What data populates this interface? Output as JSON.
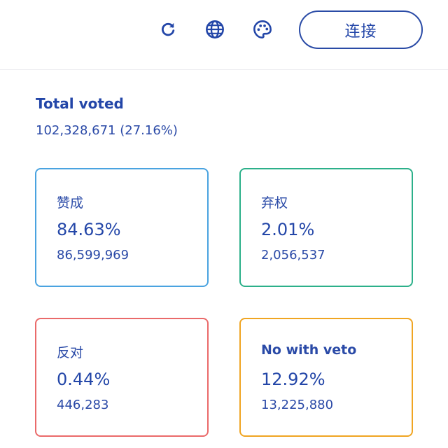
{
  "header": {
    "icons": {
      "refresh": "refresh-icon",
      "language": "globe-icon",
      "theme": "palette-icon"
    },
    "connect_label": "连接"
  },
  "summary": {
    "title": "Total voted",
    "value": "102,328,671 (27.16%)"
  },
  "cards": [
    {
      "label": "赞成",
      "percent": "84.63%",
      "count": "86,599,969",
      "color": "#4aa3e0"
    },
    {
      "label": "弃权",
      "percent": "2.01%",
      "count": "2,056,537",
      "color": "#2cb08a"
    },
    {
      "label": "反对",
      "percent": "0.44%",
      "count": "446,283",
      "color": "#ea6a6a"
    },
    {
      "label": "No with veto",
      "percent": "12.92%",
      "count": "13,225,880",
      "color": "#f0a522"
    }
  ],
  "colors": {
    "primary": "#2346a8"
  }
}
